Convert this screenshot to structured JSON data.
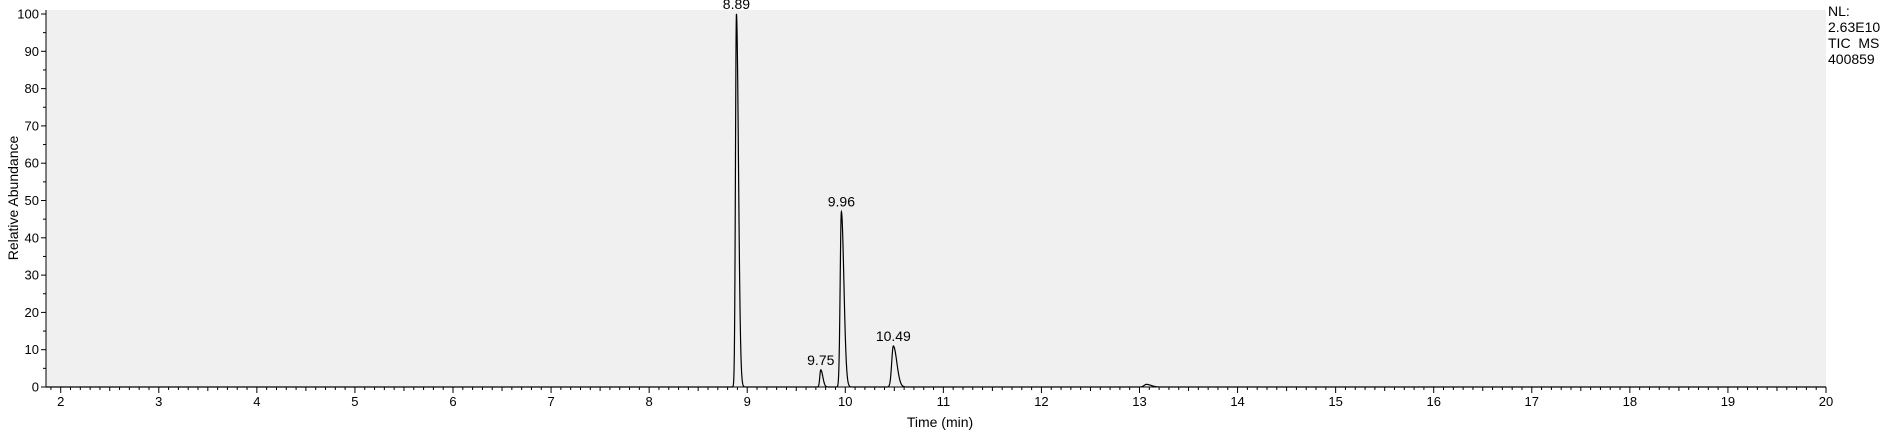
{
  "chart_data": {
    "type": "line",
    "xlabel": "Time (min)",
    "ylabel": "Relative Abundance",
    "xlim": [
      1.85,
      20
    ],
    "ylim": [
      0,
      100
    ],
    "x_ticks": [
      2,
      3,
      4,
      5,
      6,
      7,
      8,
      9,
      10,
      11,
      12,
      13,
      14,
      15,
      16,
      17,
      18,
      19,
      20
    ],
    "y_ticks": [
      0,
      10,
      20,
      30,
      40,
      50,
      60,
      70,
      80,
      90,
      100
    ],
    "grid": false,
    "line_color": "#000000",
    "plot_background": "#f0f0f0",
    "info_lines": [
      "NL:",
      "2.63E10",
      "TIC  MS",
      "400859"
    ],
    "peaks": [
      {
        "label": "8.89",
        "rt": 8.89,
        "height": 100,
        "width": 0.013
      },
      {
        "label": "9.75",
        "rt": 9.75,
        "height": 4.6,
        "width": 0.013
      },
      {
        "label": "9.96",
        "rt": 9.96,
        "height": 47,
        "width": 0.016
      },
      {
        "label": "10.49",
        "rt": 10.49,
        "height": 11,
        "width": 0.022
      }
    ],
    "minor_peaks": [
      {
        "rt": 13.07,
        "height": 0.7,
        "width": 0.03
      }
    ]
  }
}
